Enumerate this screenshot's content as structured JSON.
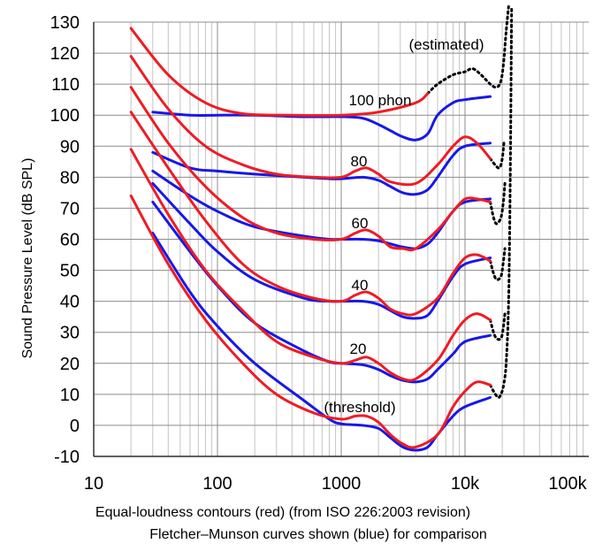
{
  "chart_data": {
    "type": "line",
    "xscale": "log",
    "xlim": [
      10,
      100000
    ],
    "ylim": [
      -10,
      130
    ],
    "grid": true,
    "yticks": [
      "130",
      "120",
      "110",
      "100",
      "90",
      "80",
      "70",
      "60",
      "50",
      "40",
      "30",
      "20",
      "10",
      "0",
      "-10"
    ],
    "xticks": [
      "10",
      "100",
      "1000",
      "10k",
      "100k"
    ],
    "ylabel": "Sound Pressure Level (dB SPL)",
    "xlabel_line1": "Equal-loudness contours (red) (from ISO 226:2003 revision)",
    "xlabel_line2": "Fletcher–Munson curves shown (blue) for comparison",
    "annotations": [
      "(estimated)",
      "100 phon",
      "80",
      "60",
      "40",
      "20",
      "(threshold)"
    ],
    "colors": {
      "iso": "#ee1c24",
      "fletcher": "#1818e6",
      "estimated": "#000000"
    },
    "series": [
      {
        "group": "iso",
        "level": 100,
        "points": [
          [
            20,
            128
          ],
          [
            40,
            113
          ],
          [
            80,
            104
          ],
          [
            160,
            100.5
          ],
          [
            400,
            100
          ],
          [
            1000,
            100
          ],
          [
            2000,
            101
          ],
          [
            4000,
            104
          ],
          [
            5000,
            107
          ]
        ]
      },
      {
        "group": "iso",
        "level": 80,
        "points": [
          [
            20,
            119
          ],
          [
            40,
            102
          ],
          [
            80,
            90
          ],
          [
            160,
            84
          ],
          [
            300,
            81
          ],
          [
            600,
            80
          ],
          [
            1000,
            80
          ],
          [
            1300,
            82
          ],
          [
            1600,
            83
          ],
          [
            2000,
            81
          ],
          [
            2500,
            78.5
          ],
          [
            4000,
            78
          ],
          [
            6000,
            84
          ],
          [
            8000,
            90
          ],
          [
            10000,
            93
          ],
          [
            12500,
            91
          ],
          [
            16000,
            86
          ]
        ]
      },
      {
        "group": "iso",
        "level": 60,
        "points": [
          [
            20,
            109
          ],
          [
            40,
            91
          ],
          [
            80,
            77
          ],
          [
            160,
            67
          ],
          [
            300,
            62
          ],
          [
            600,
            60
          ],
          [
            1000,
            60
          ],
          [
            1300,
            62
          ],
          [
            1600,
            63
          ],
          [
            2000,
            61
          ],
          [
            2500,
            57.5
          ],
          [
            3150,
            57
          ],
          [
            4000,
            57
          ],
          [
            6000,
            63
          ],
          [
            8000,
            69
          ],
          [
            10000,
            73
          ],
          [
            12500,
            73
          ],
          [
            16000,
            72
          ]
        ]
      },
      {
        "group": "iso",
        "level": 40,
        "points": [
          [
            20,
            101
          ],
          [
            40,
            83
          ],
          [
            80,
            66
          ],
          [
            160,
            52
          ],
          [
            300,
            45
          ],
          [
            600,
            41
          ],
          [
            1000,
            40
          ],
          [
            1300,
            42
          ],
          [
            1600,
            43
          ],
          [
            2000,
            41
          ],
          [
            2500,
            37.5
          ],
          [
            3150,
            36
          ],
          [
            4000,
            36
          ],
          [
            6000,
            41
          ],
          [
            8000,
            49
          ],
          [
            10000,
            54
          ],
          [
            12500,
            55
          ],
          [
            16000,
            53
          ]
        ]
      },
      {
        "group": "iso",
        "level": 20,
        "points": [
          [
            20,
            89
          ],
          [
            40,
            68
          ],
          [
            80,
            50
          ],
          [
            160,
            37
          ],
          [
            300,
            27
          ],
          [
            600,
            22
          ],
          [
            1000,
            20
          ],
          [
            1300,
            21
          ],
          [
            1600,
            22
          ],
          [
            2000,
            20
          ],
          [
            2500,
            17
          ],
          [
            3150,
            15
          ],
          [
            4000,
            15
          ],
          [
            6000,
            21
          ],
          [
            8000,
            29
          ],
          [
            10000,
            34
          ],
          [
            12500,
            36
          ],
          [
            16000,
            34
          ]
        ]
      },
      {
        "group": "iso",
        "level": 0,
        "points": [
          [
            20,
            74
          ],
          [
            40,
            52
          ],
          [
            80,
            34
          ],
          [
            160,
            20
          ],
          [
            300,
            10
          ],
          [
            600,
            4
          ],
          [
            1000,
            2
          ],
          [
            1300,
            3
          ],
          [
            1600,
            3
          ],
          [
            2000,
            1
          ],
          [
            2500,
            -3
          ],
          [
            3150,
            -6
          ],
          [
            4000,
            -7
          ],
          [
            6000,
            -3
          ],
          [
            8000,
            6
          ],
          [
            10000,
            11
          ],
          [
            12500,
            14
          ],
          [
            16000,
            13
          ]
        ]
      },
      {
        "group": "fletcher",
        "level": 100,
        "points": [
          [
            30,
            101
          ],
          [
            60,
            100
          ],
          [
            100,
            100
          ],
          [
            200,
            100
          ],
          [
            500,
            99.5
          ],
          [
            1000,
            99.5
          ],
          [
            1500,
            99
          ],
          [
            2000,
            97
          ],
          [
            2500,
            95
          ],
          [
            3150,
            93
          ],
          [
            4000,
            92
          ],
          [
            5000,
            94
          ],
          [
            6000,
            100
          ],
          [
            8000,
            104
          ],
          [
            10000,
            105
          ],
          [
            16000,
            106
          ]
        ]
      },
      {
        "group": "fletcher",
        "level": 80,
        "points": [
          [
            30,
            88
          ],
          [
            60,
            83
          ],
          [
            100,
            82
          ],
          [
            200,
            81
          ],
          [
            500,
            80
          ],
          [
            800,
            79.5
          ],
          [
            1000,
            79.5
          ],
          [
            1500,
            80
          ],
          [
            2000,
            79
          ],
          [
            2500,
            77
          ],
          [
            3150,
            75
          ],
          [
            4000,
            74.5
          ],
          [
            5000,
            76
          ],
          [
            6000,
            80
          ],
          [
            8000,
            87
          ],
          [
            10000,
            90
          ],
          [
            16000,
            91
          ]
        ]
      },
      {
        "group": "fletcher",
        "level": 60,
        "points": [
          [
            30,
            82
          ],
          [
            60,
            74
          ],
          [
            100,
            69
          ],
          [
            200,
            64
          ],
          [
            500,
            61
          ],
          [
            800,
            60
          ],
          [
            1000,
            60
          ],
          [
            1500,
            60
          ],
          [
            2000,
            59.5
          ],
          [
            2500,
            58.5
          ],
          [
            3150,
            57.5
          ],
          [
            4000,
            57
          ],
          [
            5000,
            58.5
          ],
          [
            6000,
            62
          ],
          [
            8000,
            69
          ],
          [
            10000,
            72
          ],
          [
            16000,
            73
          ]
        ]
      },
      {
        "group": "fletcher",
        "level": 40,
        "points": [
          [
            30,
            78
          ],
          [
            60,
            65
          ],
          [
            100,
            56
          ],
          [
            200,
            47
          ],
          [
            500,
            41
          ],
          [
            800,
            40
          ],
          [
            1000,
            40
          ],
          [
            1500,
            40
          ],
          [
            2000,
            39
          ],
          [
            2500,
            37
          ],
          [
            3150,
            35
          ],
          [
            4000,
            34.5
          ],
          [
            5000,
            35.5
          ],
          [
            6000,
            40
          ],
          [
            8000,
            48
          ],
          [
            10000,
            52
          ],
          [
            16000,
            54
          ]
        ]
      },
      {
        "group": "fletcher",
        "level": 20,
        "points": [
          [
            30,
            72
          ],
          [
            60,
            56
          ],
          [
            100,
            45
          ],
          [
            200,
            33
          ],
          [
            500,
            24
          ],
          [
            800,
            20.5
          ],
          [
            1000,
            20
          ],
          [
            1500,
            19.5
          ],
          [
            2000,
            18
          ],
          [
            2500,
            16
          ],
          [
            3150,
            14.5
          ],
          [
            4000,
            14
          ],
          [
            5000,
            15
          ],
          [
            6000,
            18
          ],
          [
            8000,
            23
          ],
          [
            10000,
            27
          ],
          [
            16000,
            29
          ]
        ]
      },
      {
        "group": "fletcher",
        "level": 0,
        "points": [
          [
            30,
            62
          ],
          [
            60,
            43
          ],
          [
            100,
            32
          ],
          [
            200,
            20
          ],
          [
            500,
            8
          ],
          [
            800,
            2
          ],
          [
            1000,
            0.5
          ],
          [
            1500,
            0
          ],
          [
            2000,
            -1
          ],
          [
            2500,
            -4
          ],
          [
            3150,
            -7
          ],
          [
            4000,
            -8
          ],
          [
            5000,
            -7
          ],
          [
            6000,
            -3
          ],
          [
            8000,
            3
          ],
          [
            10000,
            6
          ],
          [
            16000,
            9
          ]
        ]
      },
      {
        "group": "estimated",
        "points": [
          [
            5000,
            107
          ],
          [
            6000,
            110
          ],
          [
            8000,
            113
          ],
          [
            10000,
            114
          ],
          [
            11500,
            115
          ],
          [
            13500,
            113
          ],
          [
            16000,
            110
          ],
          [
            18000,
            109
          ],
          [
            19500,
            111
          ],
          [
            20500,
            117
          ],
          [
            21500,
            127
          ],
          [
            22500,
            135
          ]
        ]
      },
      {
        "group": "estimated",
        "points": [
          [
            16000,
            86
          ],
          [
            17500,
            84
          ],
          [
            19000,
            83
          ],
          [
            20000,
            86
          ],
          [
            20600,
            91
          ]
        ]
      },
      {
        "group": "estimated",
        "points": [
          [
            16000,
            72
          ],
          [
            17000,
            67
          ],
          [
            18000,
            65
          ],
          [
            19500,
            67
          ],
          [
            20400,
            72
          ],
          [
            21000,
            78
          ]
        ]
      },
      {
        "group": "estimated",
        "points": [
          [
            16000,
            53
          ],
          [
            17000,
            49
          ],
          [
            18000,
            47
          ],
          [
            19500,
            48
          ],
          [
            20300,
            52
          ],
          [
            21000,
            57
          ]
        ]
      },
      {
        "group": "estimated",
        "points": [
          [
            16000,
            34
          ],
          [
            17000,
            30
          ],
          [
            18000,
            28
          ],
          [
            19500,
            28
          ],
          [
            20300,
            31
          ],
          [
            21000,
            36
          ]
        ]
      },
      {
        "group": "estimated",
        "points": [
          [
            16000,
            13
          ],
          [
            17000,
            11
          ],
          [
            18500,
            9
          ],
          [
            19500,
            10
          ],
          [
            20500,
            13
          ],
          [
            21500,
            20
          ],
          [
            22500,
            40
          ],
          [
            23200,
            80
          ],
          [
            23800,
            135
          ]
        ]
      }
    ]
  }
}
